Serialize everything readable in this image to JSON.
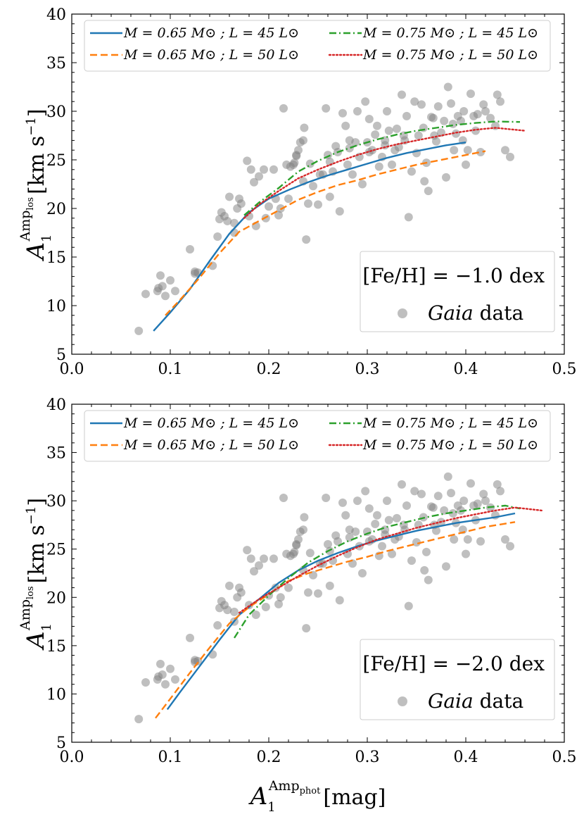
{
  "chart_data": [
    {
      "type": "scatter",
      "panel": "top",
      "xlim": [
        0.0,
        0.5
      ],
      "ylim": [
        5,
        40
      ],
      "xticks": [
        "0.0",
        "0.1",
        "0.2",
        "0.3",
        "0.4",
        "0.5"
      ],
      "yticks": [
        "5",
        "10",
        "15",
        "20",
        "25",
        "30",
        "35",
        "40"
      ],
      "ylabel": "A1^Amp_los [km s^-1]",
      "annotation": "[Fe/H] = −1.0 dex",
      "legend_position": "top",
      "series": [
        {
          "name": "M = 0.65 M⊙ ; L = 45 L⊙",
          "color": "#1f77b4",
          "style": "solid",
          "x": [
            0.083,
            0.1,
            0.12,
            0.14,
            0.16,
            0.18,
            0.2,
            0.22,
            0.24,
            0.26,
            0.28,
            0.3,
            0.32,
            0.34,
            0.36,
            0.38,
            0.4
          ],
          "y": [
            7.4,
            9.3,
            11.7,
            14.6,
            17.4,
            19.6,
            21.0,
            21.9,
            22.7,
            23.4,
            24.0,
            24.6,
            25.2,
            25.7,
            26.1,
            26.5,
            26.8
          ]
        },
        {
          "name": "M = 0.65 M⊙ ; L = 50 L⊙",
          "color": "#ff7f0e",
          "style": "dashed",
          "x": [
            0.095,
            0.11,
            0.13,
            0.15,
            0.17,
            0.19,
            0.21,
            0.23,
            0.25,
            0.27,
            0.29,
            0.31,
            0.33,
            0.35,
            0.37,
            0.39,
            0.42
          ],
          "y": [
            9.0,
            10.6,
            12.9,
            15.4,
            17.6,
            18.7,
            19.8,
            20.9,
            21.7,
            22.4,
            22.9,
            23.5,
            24.0,
            24.5,
            24.9,
            25.3,
            25.9
          ]
        },
        {
          "name": "M = 0.75 M⊙ ; L = 45 L⊙",
          "color": "#2ca02c",
          "style": "dashdot",
          "x": [
            0.175,
            0.19,
            0.21,
            0.23,
            0.25,
            0.27,
            0.29,
            0.31,
            0.33,
            0.35,
            0.37,
            0.39,
            0.41,
            0.43,
            0.455
          ],
          "y": [
            19.3,
            20.6,
            22.1,
            23.8,
            24.9,
            25.8,
            26.5,
            27.1,
            27.6,
            28.0,
            28.3,
            28.6,
            28.8,
            28.95,
            28.9
          ]
        },
        {
          "name": "M = 0.75 M⊙ ; L = 50 L⊙",
          "color": "#d62728",
          "style": "dotted",
          "x": [
            0.175,
            0.19,
            0.21,
            0.23,
            0.25,
            0.27,
            0.29,
            0.31,
            0.33,
            0.35,
            0.37,
            0.39,
            0.41,
            0.43,
            0.46
          ],
          "y": [
            19.0,
            20.4,
            21.8,
            23.1,
            24.0,
            24.8,
            25.5,
            26.1,
            26.6,
            27.0,
            27.4,
            27.8,
            28.1,
            28.3,
            28.0
          ]
        }
      ]
    },
    {
      "type": "scatter",
      "panel": "bottom",
      "xlim": [
        0.0,
        0.5
      ],
      "ylim": [
        5,
        40
      ],
      "xticks": [
        "0.0",
        "0.1",
        "0.2",
        "0.3",
        "0.4",
        "0.5"
      ],
      "yticks": [
        "5",
        "10",
        "15",
        "20",
        "25",
        "30",
        "35",
        "40"
      ],
      "xlabel": "A1^Amp_phot [mag]",
      "ylabel": "A1^Amp_los [km s^-1]",
      "annotation": "[Fe/H] = −2.0 dex",
      "legend_position": "top",
      "series": [
        {
          "name": "M = 0.65 M⊙ ; L = 45 L⊙",
          "color": "#1f77b4",
          "style": "solid",
          "x": [
            0.097,
            0.11,
            0.13,
            0.15,
            0.17,
            0.19,
            0.21,
            0.23,
            0.25,
            0.27,
            0.29,
            0.31,
            0.33,
            0.35,
            0.37,
            0.39,
            0.41,
            0.43,
            0.45
          ],
          "y": [
            8.4,
            10.2,
            12.9,
            15.6,
            18.2,
            19.8,
            21.5,
            22.8,
            23.8,
            24.6,
            25.3,
            25.9,
            26.4,
            26.9,
            27.3,
            27.7,
            28.0,
            28.3,
            28.7
          ]
        },
        {
          "name": "M = 0.65 M⊙ ; L = 50 L⊙",
          "color": "#ff7f0e",
          "style": "dashed",
          "x": [
            0.085,
            0.1,
            0.12,
            0.14,
            0.16,
            0.18,
            0.2,
            0.22,
            0.24,
            0.26,
            0.28,
            0.3,
            0.32,
            0.34,
            0.36,
            0.38,
            0.4,
            0.42,
            0.45
          ],
          "y": [
            7.5,
            9.5,
            12.2,
            14.8,
            17.3,
            19.0,
            20.3,
            21.7,
            22.5,
            23.1,
            23.7,
            24.2,
            24.8,
            25.3,
            25.8,
            26.3,
            26.8,
            27.3,
            27.8
          ]
        },
        {
          "name": "M = 0.75 M⊙ ; L = 45 L⊙",
          "color": "#2ca02c",
          "style": "dashdot",
          "x": [
            0.165,
            0.18,
            0.2,
            0.22,
            0.24,
            0.26,
            0.28,
            0.3,
            0.32,
            0.34,
            0.36,
            0.38,
            0.4,
            0.42,
            0.44,
            0.455
          ],
          "y": [
            15.8,
            18.2,
            20.2,
            22.0,
            23.6,
            24.8,
            25.8,
            26.6,
            27.3,
            27.8,
            28.3,
            28.7,
            29.0,
            29.3,
            29.5,
            29.2
          ]
        },
        {
          "name": "M = 0.75 M⊙ ; L = 50 L⊙",
          "color": "#d62728",
          "style": "dotted",
          "x": [
            0.17,
            0.19,
            0.21,
            0.23,
            0.25,
            0.27,
            0.29,
            0.31,
            0.33,
            0.35,
            0.37,
            0.39,
            0.41,
            0.43,
            0.45,
            0.477
          ],
          "y": [
            18.4,
            19.8,
            21.0,
            22.2,
            23.3,
            24.3,
            25.2,
            26.0,
            26.6,
            27.2,
            27.7,
            28.2,
            28.6,
            29.0,
            29.3,
            29.0
          ]
        }
      ]
    }
  ],
  "gaia": {
    "label_italic": "Gaia",
    "label_rest": " data",
    "color": "#7f7f7f",
    "x": [
      0.068,
      0.075,
      0.087,
      0.09,
      0.092,
      0.095,
      0.088,
      0.1,
      0.105,
      0.12,
      0.125,
      0.125,
      0.128,
      0.143,
      0.148,
      0.15,
      0.152,
      0.155,
      0.158,
      0.16,
      0.165,
      0.168,
      0.165,
      0.17,
      0.172,
      0.178,
      0.18,
      0.182,
      0.185,
      0.19,
      0.195,
      0.2,
      0.205,
      0.21,
      0.215,
      0.22,
      0.222,
      0.225,
      0.226,
      0.228,
      0.23,
      0.232,
      0.235,
      0.236,
      0.238,
      0.24,
      0.242,
      0.245,
      0.25,
      0.255,
      0.258,
      0.26,
      0.262,
      0.265,
      0.268,
      0.27,
      0.272,
      0.275,
      0.278,
      0.28,
      0.282,
      0.285,
      0.288,
      0.29,
      0.292,
      0.295,
      0.298,
      0.3,
      0.302,
      0.305,
      0.308,
      0.31,
      0.312,
      0.315,
      0.318,
      0.32,
      0.322,
      0.325,
      0.328,
      0.33,
      0.332,
      0.335,
      0.338,
      0.34,
      0.342,
      0.345,
      0.348,
      0.35,
      0.352,
      0.355,
      0.358,
      0.36,
      0.362,
      0.365,
      0.368,
      0.37,
      0.372,
      0.375,
      0.378,
      0.38,
      0.382,
      0.385,
      0.388,
      0.39,
      0.392,
      0.395,
      0.398,
      0.4,
      0.402,
      0.405,
      0.408,
      0.41,
      0.415,
      0.418,
      0.42,
      0.425,
      0.43,
      0.432,
      0.435,
      0.44,
      0.445,
      0.235,
      0.252,
      0.228,
      0.218,
      0.187,
      0.197,
      0.207,
      0.212,
      0.262,
      0.282,
      0.302,
      0.318,
      0.337,
      0.357,
      0.367,
      0.387,
      0.397,
      0.412
    ],
    "y": [
      7.4,
      11.2,
      11.5,
      13.1,
      12.0,
      11.0,
      11.8,
      12.6,
      11.5,
      15.8,
      13.5,
      13.3,
      13.4,
      14.1,
      17.1,
      18.9,
      19.6,
      19.2,
      18.7,
      21.2,
      18.5,
      20.0,
      17.5,
      21.0,
      20.5,
      24.9,
      19.2,
      24.0,
      22.7,
      23.3,
      24.0,
      20.2,
      24.0,
      19.3,
      30.3,
      21.0,
      24.3,
      24.5,
      24.7,
      25.5,
      26.0,
      26.8,
      27.0,
      28.3,
      16.8,
      20.5,
      24.6,
      22.3,
      20.4,
      23.5,
      30.3,
      25.5,
      21.2,
      23.8,
      26.4,
      25.8,
      19.7,
      29.8,
      28.5,
      24.5,
      26.2,
      23.5,
      26.8,
      30.0,
      25.3,
      22.5,
      31.0,
      26.8,
      29.2,
      26.0,
      27.6,
      28.5,
      24.3,
      25.3,
      26.5,
      30.0,
      28.0,
      24.5,
      26.0,
      28.2,
      26.3,
      31.7,
      27.0,
      29.5,
      19.1,
      23.8,
      31.0,
      25.7,
      27.5,
      30.7,
      22.8,
      24.7,
      21.8,
      29.4,
      27.5,
      26.9,
      30.5,
      27.8,
      29.0,
      23.2,
      32.5,
      30.8,
      26.0,
      27.7,
      29.5,
      29.0,
      30.0,
      24.5,
      26.0,
      31.8,
      29.5,
      28.0,
      25.8,
      30.7,
      30.0,
      29.3,
      28.5,
      31.7,
      31.0,
      26.0,
      25.3,
      22.8,
      23.5,
      25.4,
      24.5,
      18.2,
      19.0,
      21.0,
      20.0,
      24.8,
      27.0,
      25.8,
      27.0,
      27.5,
      28.3,
      29.3,
      28.7,
      27.0,
      29.7
    ]
  }
}
